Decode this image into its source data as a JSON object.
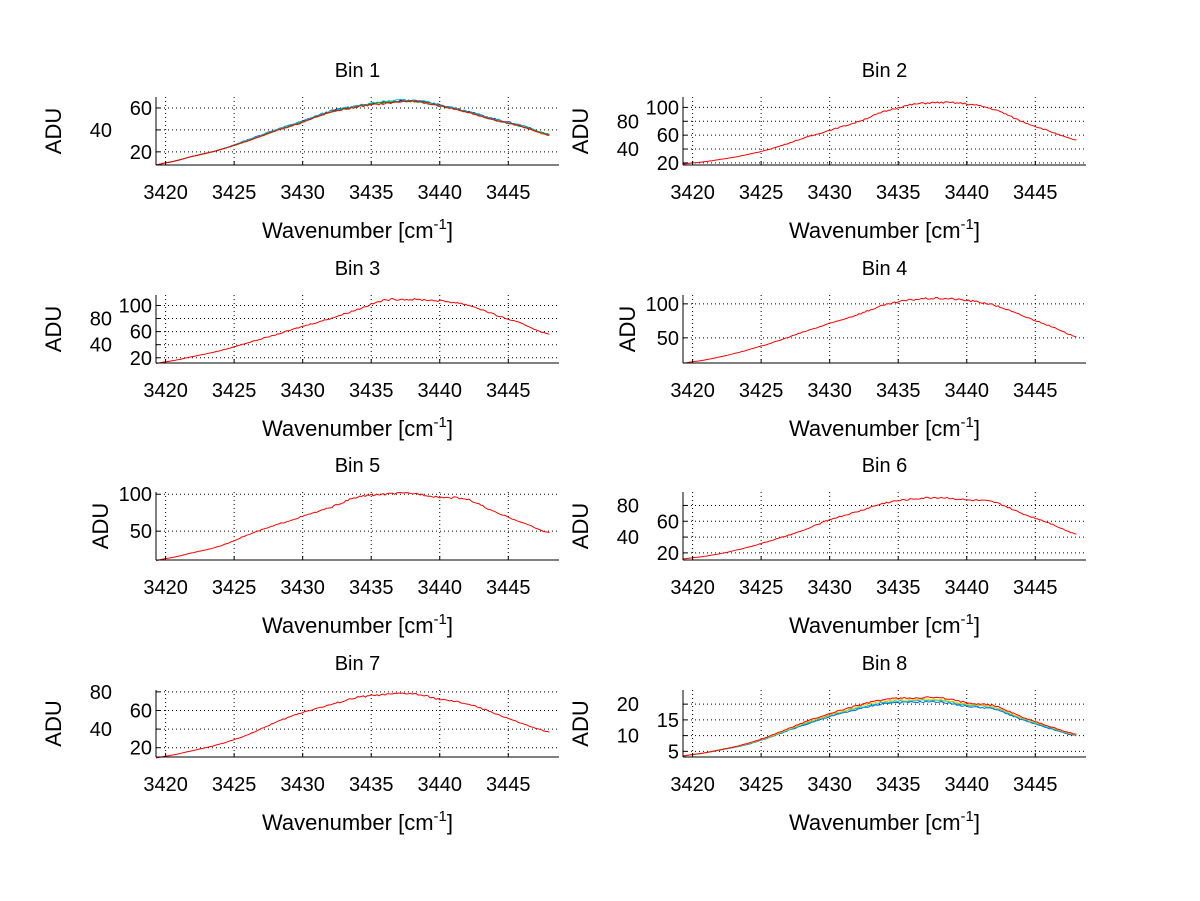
{
  "chart_data": [
    {
      "type": "line",
      "title": "Bin 1",
      "xlabel_prefix": "Wavenumber [cm",
      "xlabel_sup": "-1",
      "xlabel_suffix": "]",
      "ylabel": "ADU",
      "xlim": [
        3419.3,
        3448.7
      ],
      "ylim": [
        8,
        70
      ],
      "xticks": [
        3420,
        3425,
        3430,
        3435,
        3440,
        3445
      ],
      "yticks": [
        20,
        40,
        60
      ],
      "grid": true,
      "x": [
        3420,
        3422,
        3424,
        3426,
        3428,
        3430,
        3432,
        3434,
        3436,
        3438,
        3440,
        3442,
        3444,
        3446,
        3448
      ],
      "series": [
        {
          "name": "blue",
          "color": "#0000ff",
          "values": [
            10,
            16,
            22,
            31,
            40,
            48,
            57,
            62,
            65,
            67,
            63,
            57,
            50,
            44,
            36
          ]
        },
        {
          "name": "cyan",
          "color": "#00bfbf",
          "values": [
            10,
            16,
            22,
            31,
            40,
            48,
            57,
            62,
            66,
            67,
            63,
            57,
            50,
            44,
            36
          ]
        },
        {
          "name": "green",
          "color": "#00aa00",
          "values": [
            10,
            16,
            22,
            30,
            39,
            47,
            56,
            61,
            65,
            66,
            62,
            56,
            49,
            43,
            36
          ]
        },
        {
          "name": "red",
          "color": "#ff0000",
          "values": [
            10,
            16,
            22,
            30,
            39,
            47,
            56,
            61,
            64,
            66,
            62,
            56,
            49,
            43,
            35
          ]
        }
      ]
    },
    {
      "type": "line",
      "title": "Bin 2",
      "xlabel_prefix": "Wavenumber [cm",
      "xlabel_sup": "-1",
      "xlabel_suffix": "]",
      "ylabel": "ADU",
      "xlim": [
        3419.3,
        3448.7
      ],
      "ylim": [
        17,
        115
      ],
      "xticks": [
        3420,
        3425,
        3430,
        3435,
        3440,
        3445
      ],
      "yticks": [
        20,
        40,
        60,
        80,
        100
      ],
      "grid": true,
      "x": [
        3420,
        3422,
        3424,
        3426,
        3428,
        3430,
        3432,
        3434,
        3436,
        3438,
        3440,
        3442,
        3444,
        3446,
        3448
      ],
      "series": [
        {
          "name": "red",
          "color": "#ff0000",
          "values": [
            20,
            25,
            32,
            42,
            55,
            67,
            79,
            94,
            104,
            107,
            105,
            97,
            80,
            66,
            53
          ]
        }
      ]
    },
    {
      "type": "line",
      "title": "Bin 3",
      "xlabel_prefix": "Wavenumber [cm",
      "xlabel_sup": "-1",
      "xlabel_suffix": "]",
      "ylabel": "ADU",
      "xlim": [
        3419.3,
        3448.7
      ],
      "ylim": [
        12,
        116
      ],
      "xticks": [
        3420,
        3425,
        3430,
        3435,
        3440,
        3445
      ],
      "yticks": [
        20,
        40,
        60,
        80,
        100
      ],
      "grid": true,
      "x": [
        3420,
        3422,
        3424,
        3426,
        3428,
        3430,
        3432,
        3434,
        3436,
        3438,
        3440,
        3442,
        3444,
        3446,
        3448
      ],
      "series": [
        {
          "name": "red",
          "color": "#ff0000",
          "values": [
            14,
            22,
            31,
            43,
            55,
            68,
            80,
            94,
            108,
            109,
            107,
            101,
            86,
            72,
            56
          ]
        }
      ]
    },
    {
      "type": "line",
      "title": "Bin 4",
      "xlabel_prefix": "Wavenumber [cm",
      "xlabel_sup": "-1",
      "xlabel_suffix": "]",
      "ylabel": "ADU",
      "xlim": [
        3419.3,
        3448.7
      ],
      "ylim": [
        13,
        113
      ],
      "xticks": [
        3420,
        3425,
        3430,
        3435,
        3440,
        3445
      ],
      "yticks": [
        50,
        100
      ],
      "grid": true,
      "x": [
        3420,
        3422,
        3424,
        3426,
        3428,
        3430,
        3432,
        3434,
        3436,
        3438,
        3440,
        3442,
        3444,
        3446,
        3448
      ],
      "series": [
        {
          "name": "red",
          "color": "#ff0000",
          "values": [
            15,
            22,
            32,
            44,
            58,
            71,
            84,
            98,
            106,
            108,
            105,
            98,
            83,
            68,
            52
          ]
        }
      ]
    },
    {
      "type": "line",
      "title": "Bin 5",
      "xlabel_prefix": "Wavenumber [cm",
      "xlabel_sup": "-1",
      "xlabel_suffix": "]",
      "ylabel": "ADU",
      "xlim": [
        3419.3,
        3448.7
      ],
      "ylim": [
        11,
        103
      ],
      "xticks": [
        3420,
        3425,
        3430,
        3435,
        3440,
        3445
      ],
      "yticks": [
        50,
        100
      ],
      "grid": true,
      "x": [
        3420,
        3422,
        3424,
        3426,
        3428,
        3430,
        3432,
        3434,
        3436,
        3438,
        3440,
        3442,
        3444,
        3446,
        3448
      ],
      "series": [
        {
          "name": "red",
          "color": "#ff0000",
          "values": [
            13,
            21,
            30,
            45,
            58,
            70,
            82,
            96,
            100,
            101,
            96,
            93,
            76,
            62,
            48
          ]
        }
      ]
    },
    {
      "type": "line",
      "title": "Bin 6",
      "xlabel_prefix": "Wavenumber [cm",
      "xlabel_sup": "-1",
      "xlabel_suffix": "]",
      "ylabel": "ADU",
      "xlim": [
        3419.3,
        3448.7
      ],
      "ylim": [
        11,
        97
      ],
      "xticks": [
        3420,
        3425,
        3430,
        3435,
        3440,
        3445
      ],
      "yticks": [
        20,
        40,
        60,
        80
      ],
      "grid": true,
      "x": [
        3420,
        3422,
        3424,
        3426,
        3428,
        3430,
        3432,
        3434,
        3436,
        3438,
        3440,
        3442,
        3444,
        3446,
        3448
      ],
      "series": [
        {
          "name": "red",
          "color": "#ff0000",
          "values": [
            14,
            19,
            27,
            37,
            48,
            62,
            72,
            83,
            88,
            90,
            87,
            84,
            70,
            58,
            44
          ]
        }
      ]
    },
    {
      "type": "line",
      "title": "Bin 7",
      "xlabel_prefix": "Wavenumber [cm",
      "xlabel_sup": "-1",
      "xlabel_suffix": "]",
      "ylabel": "ADU",
      "xlim": [
        3419.3,
        3448.7
      ],
      "ylim": [
        10,
        82
      ],
      "xticks": [
        3420,
        3425,
        3430,
        3435,
        3440,
        3445
      ],
      "yticks": [
        20,
        40,
        60,
        80
      ],
      "grid": true,
      "x": [
        3420,
        3422,
        3424,
        3426,
        3428,
        3430,
        3432,
        3434,
        3436,
        3438,
        3440,
        3442,
        3444,
        3446,
        3448
      ],
      "series": [
        {
          "name": "red",
          "color": "#ff0000",
          "values": [
            11,
            17,
            24,
            34,
            47,
            58,
            66,
            74,
            77,
            78,
            72,
            67,
            57,
            46,
            37
          ]
        }
      ]
    },
    {
      "type": "line",
      "title": "Bin 8",
      "xlabel_prefix": "Wavenumber [cm",
      "xlabel_sup": "-1",
      "xlabel_suffix": "]",
      "ylabel": "ADU",
      "xlim": [
        3419.3,
        3448.7
      ],
      "ylim": [
        3.2,
        24.5
      ],
      "xticks": [
        3420,
        3425,
        3430,
        3435,
        3440,
        3445
      ],
      "yticks": [
        5,
        10,
        15,
        20
      ],
      "grid": true,
      "x": [
        3420,
        3422,
        3424,
        3426,
        3428,
        3430,
        3432,
        3434,
        3436,
        3438,
        3440,
        3442,
        3444,
        3446,
        3448
      ],
      "series": [
        {
          "name": "blue",
          "color": "#0066cc",
          "values": [
            4,
            5.4,
            7.2,
            10,
            13.2,
            16,
            18.3,
            20.2,
            20.6,
            20.7,
            19.3,
            18.4,
            15.1,
            12.3,
            10
          ]
        },
        {
          "name": "cyan",
          "color": "#00bfbf",
          "values": [
            4,
            5.4,
            7.3,
            10.1,
            13.4,
            16.3,
            18.7,
            20.6,
            21,
            21.1,
            19.7,
            18.8,
            15.4,
            12.6,
            10.2
          ]
        },
        {
          "name": "yellow",
          "color": "#e0d000",
          "values": [
            4,
            5.5,
            7.4,
            10.3,
            13.7,
            16.6,
            19.1,
            21,
            21.5,
            21.5,
            20.1,
            19.1,
            15.7,
            12.8,
            10.3
          ]
        },
        {
          "name": "red",
          "color": "#ff0000",
          "values": [
            4,
            5.5,
            7.5,
            10.5,
            14,
            17,
            19.5,
            21.5,
            22,
            22,
            20.5,
            19.5,
            16,
            13,
            10.5
          ]
        }
      ]
    }
  ]
}
